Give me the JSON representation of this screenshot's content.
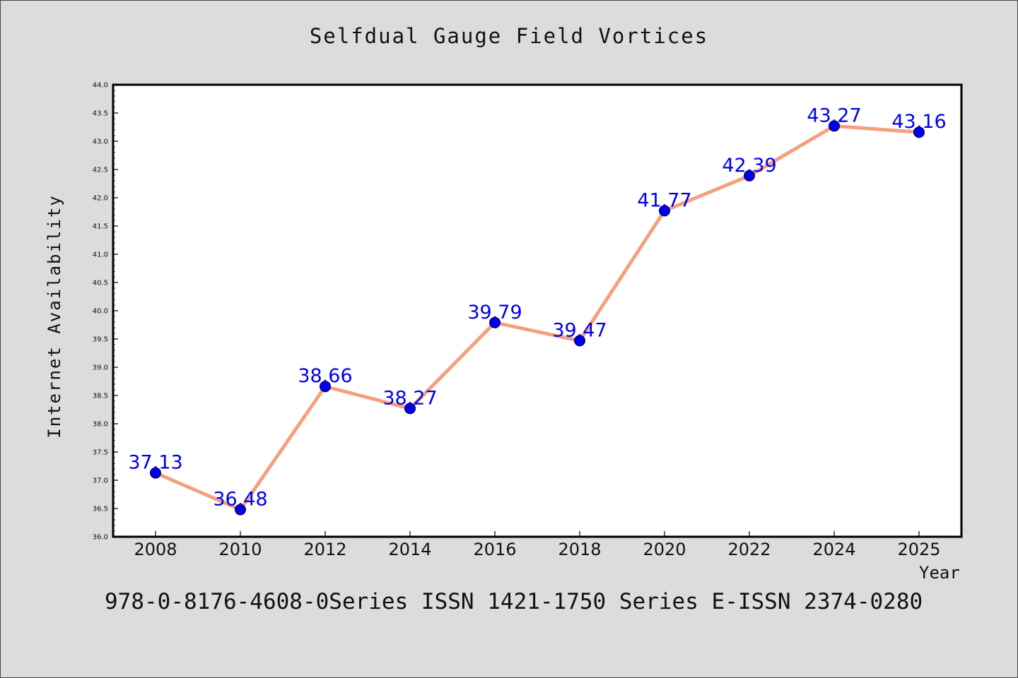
{
  "page": {
    "footer_text": "978-0-8176-4608-0Series ISSN 1421-1750 Series E-ISSN 2374-0280"
  },
  "colors": {
    "background": "#dcdcdc",
    "plot_background": "#ffffff",
    "line": "#f4a07e",
    "marker": "#0000ee",
    "data_label": "#0000ee"
  },
  "chart_data": {
    "type": "line",
    "title": "Selfdual Gauge Field Vortices",
    "xlabel": "Year",
    "ylabel": "Internet Availability",
    "categories": [
      "2008",
      "2010",
      "2012",
      "2014",
      "2016",
      "2018",
      "2020",
      "2022",
      "2024",
      "2025"
    ],
    "series": [
      {
        "values": [
          37.13,
          36.48,
          38.66,
          38.27,
          39.79,
          39.47,
          41.77,
          42.39,
          43.27,
          43.16
        ],
        "data_labels": [
          "37.13",
          "36.48",
          "38.66",
          "38.27",
          "39.79",
          "39.47",
          "41.77",
          "42.39",
          "43.27",
          "43.16"
        ]
      }
    ],
    "ylim": [
      36.0,
      44.0
    ],
    "y_ticks": [
      "36.0",
      "36.5",
      "37.0",
      "37.5",
      "38.0",
      "38.5",
      "39.0",
      "39.5",
      "40.0",
      "40.5",
      "41.0",
      "41.5",
      "42.0",
      "42.5",
      "43.0",
      "43.5",
      "44.0"
    ],
    "grid": false,
    "legend": "none"
  }
}
